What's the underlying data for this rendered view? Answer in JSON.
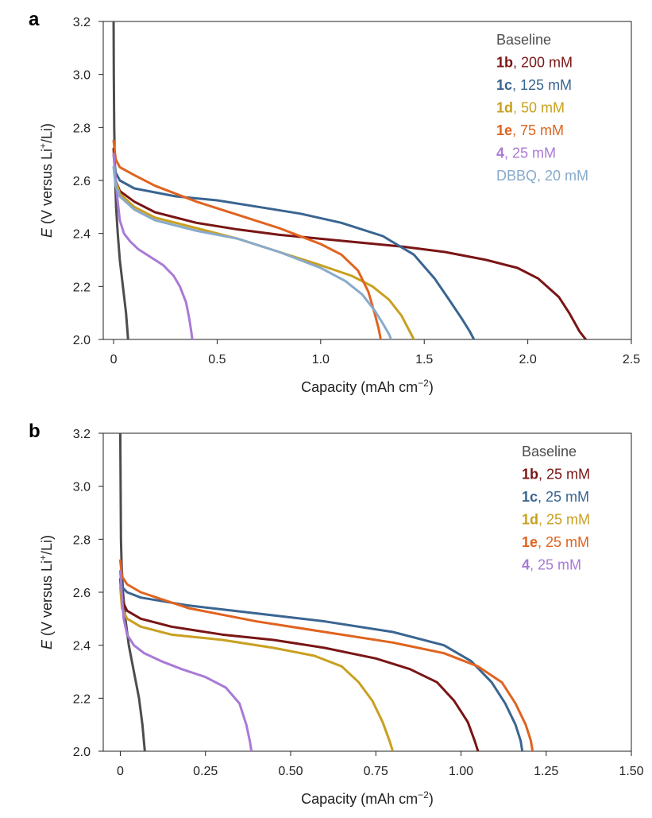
{
  "chart_data": [
    {
      "panel": "a",
      "type": "line",
      "xlabel": "Capacity (mAh cm",
      "xlabel_sup": "−2",
      "xlabel_end": ")",
      "ylabel_italic": "E",
      "ylabel": " (V versus Li",
      "ylabel_sup": "+",
      "ylabel_end": "/Li)",
      "xlim": [
        -0.05,
        2.5
      ],
      "ylim": [
        2.0,
        3.2
      ],
      "xticks": [
        0,
        0.5,
        1.0,
        1.5,
        2.0,
        2.5
      ],
      "xtick_labels": [
        "0",
        "0.5",
        "1.0",
        "1.5",
        "2.0",
        "2.5"
      ],
      "yticks": [
        2.0,
        2.2,
        2.4,
        2.6,
        2.8,
        3.0,
        3.2
      ],
      "ytick_labels": [
        "2.0",
        "2.2",
        "2.4",
        "2.6",
        "2.8",
        "3.0",
        "3.2"
      ],
      "legend_position": "top-right",
      "series": [
        {
          "name": "Baseline",
          "bold": "",
          "label": "Baseline",
          "color": "#4d4d4d",
          "x": [
            0,
            0.001,
            0.003,
            0.005,
            0.008,
            0.012,
            0.02,
            0.03,
            0.045,
            0.06,
            0.07
          ],
          "y": [
            3.2,
            3.0,
            2.8,
            2.7,
            2.6,
            2.5,
            2.4,
            2.3,
            2.2,
            2.1,
            2.0
          ]
        },
        {
          "name": "1b",
          "bold": "1b",
          "label": ", 200 mM",
          "color": "#7a1515",
          "x": [
            0,
            0.01,
            0.03,
            0.1,
            0.2,
            0.4,
            0.6,
            0.8,
            1.0,
            1.2,
            1.4,
            1.6,
            1.8,
            1.95,
            2.05,
            2.15,
            2.2,
            2.25,
            2.28
          ],
          "y": [
            2.72,
            2.6,
            2.56,
            2.52,
            2.48,
            2.44,
            2.415,
            2.395,
            2.38,
            2.365,
            2.35,
            2.33,
            2.3,
            2.27,
            2.23,
            2.16,
            2.1,
            2.03,
            2.0
          ],
          "show": true
        },
        {
          "name": "1c",
          "bold": "1c",
          "label": ", 125 mM",
          "color": "#3a6591",
          "x": [
            0,
            0.01,
            0.03,
            0.1,
            0.3,
            0.5,
            0.7,
            0.9,
            1.1,
            1.3,
            1.45,
            1.55,
            1.62,
            1.68,
            1.72,
            1.74
          ],
          "y": [
            2.7,
            2.63,
            2.6,
            2.57,
            2.54,
            2.525,
            2.5,
            2.475,
            2.44,
            2.39,
            2.32,
            2.23,
            2.15,
            2.08,
            2.03,
            2.0
          ]
        },
        {
          "name": "1d",
          "bold": "1d",
          "label": ", 50 mM",
          "color": "#c8a020",
          "x": [
            0,
            0.01,
            0.03,
            0.1,
            0.2,
            0.4,
            0.6,
            0.8,
            1.0,
            1.15,
            1.25,
            1.33,
            1.39,
            1.43,
            1.45
          ],
          "y": [
            2.7,
            2.6,
            2.55,
            2.5,
            2.46,
            2.42,
            2.38,
            2.33,
            2.28,
            2.24,
            2.2,
            2.15,
            2.09,
            2.03,
            2.0
          ]
        },
        {
          "name": "1e",
          "bold": "1e",
          "label": ", 75 mM",
          "color": "#e0631f",
          "x": [
            0,
            0.01,
            0.03,
            0.1,
            0.2,
            0.4,
            0.6,
            0.8,
            1.0,
            1.1,
            1.18,
            1.23,
            1.26,
            1.28,
            1.29
          ],
          "y": [
            2.75,
            2.68,
            2.65,
            2.62,
            2.58,
            2.52,
            2.47,
            2.42,
            2.36,
            2.32,
            2.26,
            2.18,
            2.1,
            2.04,
            2.0
          ]
        },
        {
          "name": "4",
          "bold": "4",
          "label": ", 25 mM",
          "color": "#a97ad6",
          "x": [
            0,
            0.01,
            0.02,
            0.03,
            0.05,
            0.08,
            0.12,
            0.18,
            0.24,
            0.29,
            0.32,
            0.35,
            0.365,
            0.375,
            0.38
          ],
          "y": [
            2.7,
            2.6,
            2.52,
            2.45,
            2.4,
            2.37,
            2.34,
            2.31,
            2.28,
            2.24,
            2.2,
            2.14,
            2.08,
            2.03,
            2.0
          ]
        },
        {
          "name": "DBBQ",
          "bold": "",
          "label": "DBBQ, 20 mM",
          "color": "#88aacc",
          "x": [
            0,
            0.01,
            0.03,
            0.1,
            0.2,
            0.4,
            0.6,
            0.8,
            1.0,
            1.12,
            1.2,
            1.26,
            1.3,
            1.33,
            1.34
          ],
          "y": [
            2.65,
            2.58,
            2.54,
            2.49,
            2.45,
            2.41,
            2.38,
            2.33,
            2.27,
            2.22,
            2.17,
            2.11,
            2.06,
            2.02,
            2.0
          ]
        }
      ]
    },
    {
      "panel": "b",
      "type": "line",
      "xlabel": "Capacity (mAh cm",
      "xlabel_sup": "−2",
      "xlabel_end": ")",
      "ylabel_italic": "E",
      "ylabel": " (V versus Li",
      "ylabel_sup": "+",
      "ylabel_end": "/Li)",
      "xlim": [
        -0.05,
        1.5
      ],
      "ylim": [
        2.0,
        3.2
      ],
      "xticks": [
        0,
        0.25,
        0.5,
        0.75,
        1.0,
        1.25,
        1.5
      ],
      "xtick_labels": [
        "0",
        "0.25",
        "0.50",
        "0.75",
        "1.00",
        "1.25",
        "1.50"
      ],
      "yticks": [
        2.0,
        2.2,
        2.4,
        2.6,
        2.8,
        3.0,
        3.2
      ],
      "ytick_labels": [
        "2.0",
        "2.2",
        "2.4",
        "2.6",
        "2.8",
        "3.0",
        "3.2"
      ],
      "legend_position": "top-right",
      "series": [
        {
          "name": "Baseline",
          "bold": "",
          "label": "Baseline",
          "color": "#4d4d4d",
          "x": [
            0,
            0.001,
            0.002,
            0.004,
            0.008,
            0.015,
            0.025,
            0.04,
            0.055,
            0.065,
            0.072
          ],
          "y": [
            3.2,
            3.0,
            2.8,
            2.7,
            2.6,
            2.5,
            2.4,
            2.3,
            2.2,
            2.1,
            2.0
          ]
        },
        {
          "name": "1b",
          "bold": "1b",
          "label": ", 25 mM",
          "color": "#7a1515",
          "x": [
            0,
            0.005,
            0.02,
            0.06,
            0.15,
            0.3,
            0.45,
            0.6,
            0.75,
            0.85,
            0.93,
            0.98,
            1.02,
            1.04,
            1.05
          ],
          "y": [
            2.65,
            2.57,
            2.53,
            2.5,
            2.47,
            2.44,
            2.42,
            2.39,
            2.35,
            2.31,
            2.26,
            2.19,
            2.11,
            2.04,
            2.0
          ]
        },
        {
          "name": "1c",
          "bold": "1c",
          "label": ", 25 mM",
          "color": "#3a6591",
          "x": [
            0,
            0.005,
            0.02,
            0.06,
            0.2,
            0.4,
            0.6,
            0.8,
            0.95,
            1.03,
            1.09,
            1.13,
            1.16,
            1.175,
            1.18
          ],
          "y": [
            2.68,
            2.62,
            2.6,
            2.58,
            2.55,
            2.52,
            2.49,
            2.45,
            2.4,
            2.34,
            2.26,
            2.18,
            2.1,
            2.04,
            2.0
          ]
        },
        {
          "name": "1d",
          "bold": "1d",
          "label": ", 25 mM",
          "color": "#c8a020",
          "x": [
            0,
            0.005,
            0.02,
            0.06,
            0.15,
            0.3,
            0.45,
            0.57,
            0.65,
            0.7,
            0.74,
            0.77,
            0.79,
            0.8
          ],
          "y": [
            2.62,
            2.54,
            2.5,
            2.47,
            2.44,
            2.42,
            2.39,
            2.36,
            2.32,
            2.26,
            2.19,
            2.11,
            2.04,
            2.0
          ]
        },
        {
          "name": "1e",
          "bold": "1e",
          "label": ", 25 mM",
          "color": "#e0631f",
          "x": [
            0,
            0.005,
            0.02,
            0.06,
            0.2,
            0.4,
            0.6,
            0.8,
            0.95,
            1.05,
            1.12,
            1.16,
            1.19,
            1.205,
            1.21
          ],
          "y": [
            2.72,
            2.66,
            2.63,
            2.6,
            2.54,
            2.49,
            2.45,
            2.41,
            2.37,
            2.32,
            2.26,
            2.18,
            2.1,
            2.04,
            2.0
          ]
        },
        {
          "name": "4",
          "bold": "4",
          "label": ", 25 mM",
          "color": "#a97ad6",
          "x": [
            0,
            0.005,
            0.01,
            0.02,
            0.04,
            0.07,
            0.12,
            0.18,
            0.25,
            0.31,
            0.35,
            0.37,
            0.38,
            0.385
          ],
          "y": [
            2.68,
            2.58,
            2.5,
            2.44,
            2.4,
            2.37,
            2.34,
            2.31,
            2.28,
            2.24,
            2.18,
            2.1,
            2.04,
            2.0
          ]
        }
      ]
    }
  ]
}
